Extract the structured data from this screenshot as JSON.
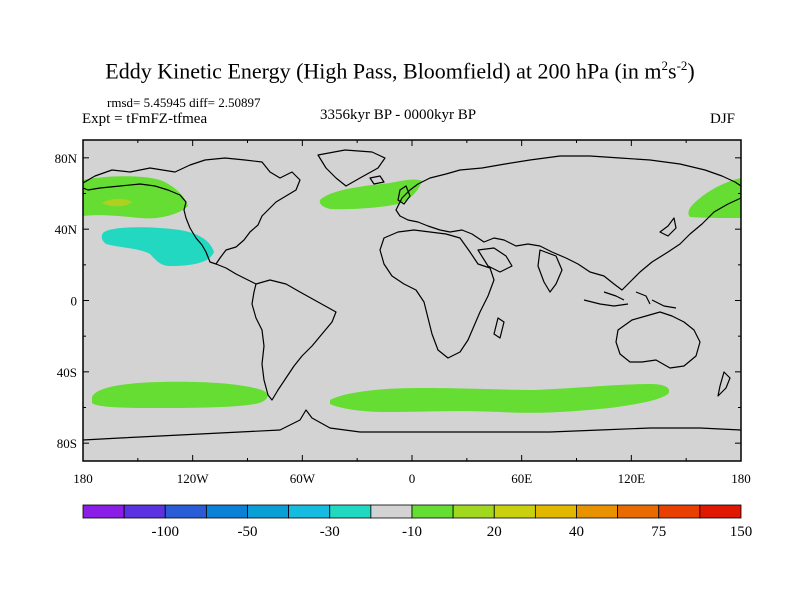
{
  "title": {
    "main": "Eddy Kinetic Energy (High Pass, Bloomfield) at 200 hPa (in m",
    "sup1": "2",
    "mid": "s",
    "sup2": "-2",
    "end": ")"
  },
  "stats": "rmsd= 5.45945 diff= 2.50897",
  "expt": "Expt = tFmFZ-tfmea",
  "period": "3356kyr BP - 0000kyr BP",
  "season": "DJF",
  "map": {
    "lat_labels": [
      "80N",
      "40N",
      "0",
      "40S",
      "80S"
    ],
    "lat_values": [
      80,
      40,
      0,
      -40,
      -80
    ],
    "lon_labels": [
      "180",
      "120W",
      "60W",
      "0",
      "60E",
      "120E",
      "180"
    ],
    "lon_values": [
      -180,
      -120,
      -60,
      0,
      60,
      120,
      180
    ],
    "background_color": "#d3d3d3",
    "anomaly_regions": [
      {
        "name": "north-pacific-east",
        "level": "20",
        "color": "#66dd33",
        "lat_range": [
          40,
          65
        ],
        "lon_range": [
          -180,
          -130
        ]
      },
      {
        "name": "north-pacific-core",
        "level": "30",
        "color": "#b0d020",
        "lat_range": [
          50,
          55
        ],
        "lon_range": [
          -175,
          -165
        ]
      },
      {
        "name": "north-atlantic",
        "level": "20",
        "color": "#66dd33",
        "lat_range": [
          48,
          62
        ],
        "lon_range": [
          -50,
          10
        ]
      },
      {
        "name": "north-pacific-west",
        "level": "20",
        "color": "#66dd33",
        "lat_range": [
          42,
          65
        ],
        "lon_range": [
          150,
          180
        ]
      },
      {
        "name": "subtropical-pacific",
        "level": "-10",
        "color": "#22d8c0",
        "lat_range": [
          15,
          35
        ],
        "lon_range": [
          -170,
          -110
        ]
      },
      {
        "name": "south-pacific",
        "level": "20",
        "color": "#66dd33",
        "lat_range": [
          -60,
          -45
        ],
        "lon_range": [
          -170,
          -80
        ]
      },
      {
        "name": "southern-ocean",
        "level": "20",
        "color": "#66dd33",
        "lat_range": [
          -62,
          -45
        ],
        "lon_range": [
          -40,
          140
        ]
      }
    ]
  },
  "colorbar": {
    "colors": [
      "#8a1ee6",
      "#5a32e0",
      "#2a5cd6",
      "#0a80d6",
      "#0aa0d6",
      "#16bce0",
      "#22d8c0",
      "#d3d3d3",
      "#66dd33",
      "#a0d820",
      "#c8d010",
      "#e0b800",
      "#e89200",
      "#e86a00",
      "#e84000",
      "#e01800"
    ],
    "labels": [
      "-100",
      "-50",
      "-30",
      "-10",
      "20",
      "40",
      "75",
      "150"
    ]
  }
}
